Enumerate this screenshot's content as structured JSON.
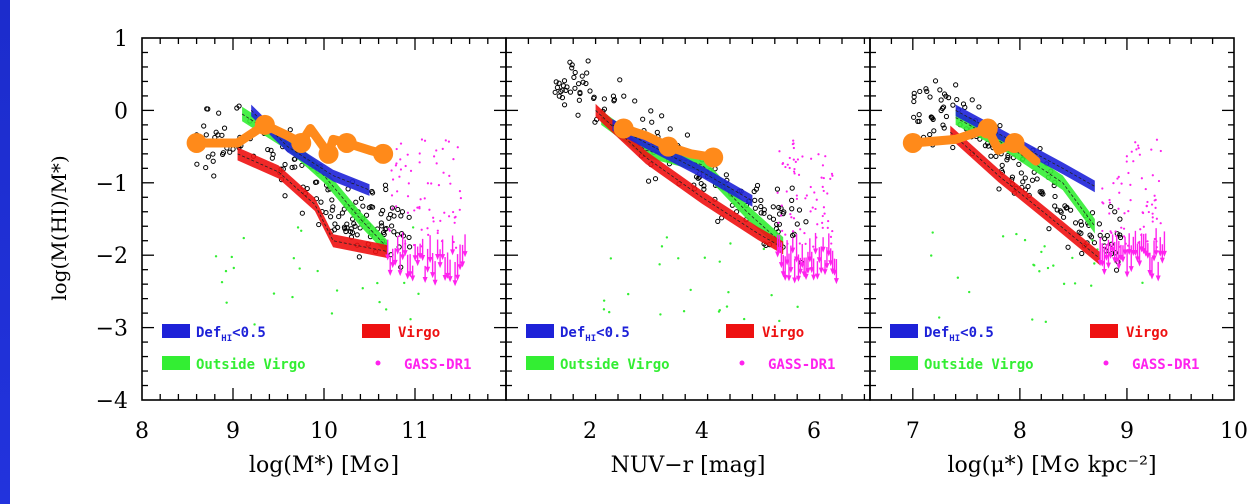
{
  "colors": {
    "background": "#1f2fd4",
    "def_hi": "#1e22d8",
    "outside_virgo": "#33ee33",
    "virgo": "#ee1111",
    "gass": "#ff22ee",
    "orange": "#ff8a1a",
    "points": "#000000"
  },
  "icons": {
    "gass_marker": "dot",
    "upper_limit_marker": "down-arrow"
  },
  "chart_data": {
    "type": "scatter",
    "grid": false,
    "ylabel": "log(M(HI)/M*)",
    "ylim": [
      -4,
      1
    ],
    "yticks": [
      "1",
      "0",
      "−1",
      "−2",
      "−3",
      "−4"
    ],
    "legend": {
      "placement": "bottom",
      "entries": [
        {
          "label": "Def",
          "sub": "HI",
          "suffix": "<0.5",
          "color_key": "def_hi"
        },
        {
          "label": "Virgo",
          "color_key": "virgo"
        },
        {
          "label": "Outside Virgo",
          "color_key": "outside_virgo"
        },
        {
          "label": "GASS-DR1",
          "color_key": "gass"
        }
      ]
    },
    "panels": [
      {
        "xlabel": "log(M*) [M⊙]",
        "xlim": [
          8,
          12
        ],
        "xticks": [
          "8",
          "9",
          "10",
          "11"
        ],
        "series": [
          {
            "name": "Virgo",
            "kind": "band",
            "x": [
              9.05,
              9.5,
              9.9,
              10.1,
              10.7
            ],
            "y": [
              -0.6,
              -0.85,
              -1.3,
              -1.8,
              -1.95
            ],
            "width": 0.18
          },
          {
            "name": "Outside Virgo",
            "kind": "band",
            "x": [
              9.1,
              9.6,
              10.0,
              10.4,
              10.7
            ],
            "y": [
              -0.05,
              -0.45,
              -0.9,
              -1.5,
              -1.9
            ],
            "width": 0.2
          },
          {
            "name": "DefHI<0.5",
            "kind": "band",
            "x": [
              9.2,
              9.6,
              10.1,
              10.5
            ],
            "y": [
              0.0,
              -0.5,
              -0.9,
              -1.1
            ],
            "width": 0.16
          },
          {
            "kind": "orange",
            "x": [
              8.6,
              9.05,
              9.35,
              9.6,
              9.75,
              9.85,
              10.05,
              10.1,
              10.25,
              10.5,
              10.65
            ],
            "y": [
              -0.45,
              -0.45,
              -0.2,
              -0.35,
              -0.45,
              -0.25,
              -0.6,
              -0.4,
              -0.45,
              -0.55,
              -0.6
            ]
          },
          {
            "name": "GASS-DR1",
            "kind": "limits",
            "x": [
              10.7,
              11.55
            ],
            "y": -2.05
          }
        ]
      },
      {
        "xlabel": "NUV−r [mag]",
        "xlim": [
          0.5,
          7
        ],
        "xticks": [
          "2",
          "4",
          "6"
        ],
        "series": [
          {
            "name": "Virgo",
            "kind": "band",
            "x": [
              2.1,
              3.0,
              4.0,
              5.0,
              5.45
            ],
            "y": [
              0.0,
              -0.65,
              -1.2,
              -1.7,
              -1.9
            ],
            "width": 0.18
          },
          {
            "name": "Outside Virgo",
            "kind": "band",
            "x": [
              2.2,
              3.0,
              4.0,
              4.8,
              5.45
            ],
            "y": [
              -0.1,
              -0.55,
              -0.75,
              -1.4,
              -1.85
            ],
            "width": 0.2
          },
          {
            "name": "DefHI<0.5",
            "kind": "band",
            "x": [
              2.4,
              3.0,
              4.0,
              4.9
            ],
            "y": [
              -0.2,
              -0.45,
              -0.85,
              -1.25
            ],
            "width": 0.16
          },
          {
            "kind": "orange",
            "x": [
              2.6,
              3.0,
              3.4,
              3.8,
              4.2
            ],
            "y": [
              -0.25,
              -0.35,
              -0.5,
              -0.6,
              -0.65
            ]
          },
          {
            "name": "GASS-DR1",
            "kind": "limits",
            "x": [
              5.35,
              6.4
            ],
            "y": -2.0
          }
        ]
      },
      {
        "xlabel": "log(μ*) [M⊙ kpc⁻²]",
        "xlim": [
          6.6,
          10
        ],
        "xticks": [
          "7",
          "8",
          "9",
          "10"
        ],
        "series": [
          {
            "name": "Virgo",
            "kind": "band",
            "x": [
              7.35,
              7.8,
              8.3,
              8.75
            ],
            "y": [
              -0.3,
              -0.9,
              -1.5,
              -2.05
            ],
            "width": 0.18
          },
          {
            "name": "Outside Virgo",
            "kind": "band",
            "x": [
              7.4,
              7.9,
              8.4,
              8.7
            ],
            "y": [
              -0.1,
              -0.5,
              -1.0,
              -1.6
            ],
            "width": 0.2
          },
          {
            "name": "DefHI<0.5",
            "kind": "band",
            "x": [
              7.4,
              7.9,
              8.4,
              8.7
            ],
            "y": [
              0.0,
              -0.4,
              -0.8,
              -1.05
            ],
            "width": 0.16
          },
          {
            "kind": "orange",
            "x": [
              7.0,
              7.4,
              7.7,
              7.8,
              7.95,
              8.15
            ],
            "y": [
              -0.45,
              -0.4,
              -0.25,
              -0.55,
              -0.45,
              -0.7
            ]
          },
          {
            "name": "GASS-DR1",
            "kind": "limits",
            "x": [
              8.75,
              9.35
            ],
            "y": -2.0
          }
        ]
      }
    ]
  }
}
